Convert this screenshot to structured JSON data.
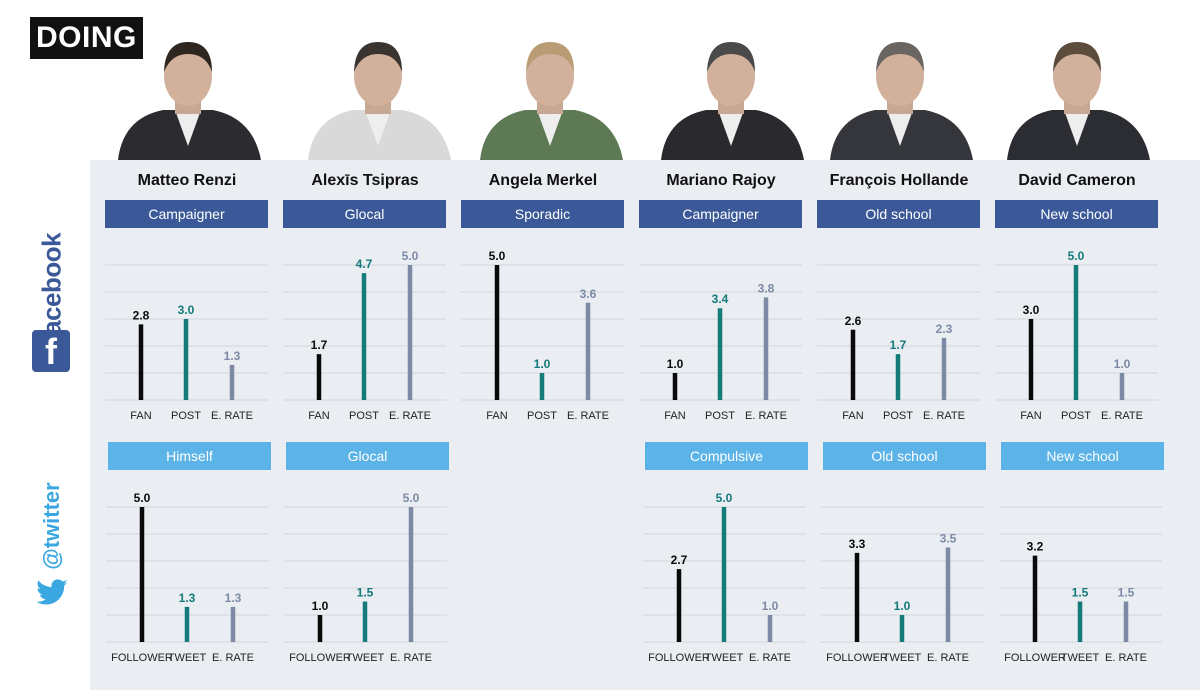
{
  "brand": "DOING",
  "logos": {
    "facebook": "facebook",
    "twitter": "@twitter"
  },
  "colors": {
    "fan": "#0a0a0a",
    "post": "#147a7a",
    "rate": "#7d8aa6",
    "facebook_style_bg": "#3b5998",
    "twitter_style_bg": "#5bb3e8",
    "post_label": "#137a7a",
    "rate_label": "#7d8aa6"
  },
  "leaders": [
    {
      "name": "Matteo Renzi",
      "photo_icon": "portrait-matteo-renzi",
      "facebook": {
        "style": "Campaigner",
        "categories": [
          "FAN",
          "POST",
          "E. RATE"
        ],
        "values": [
          2.8,
          3.0,
          1.3
        ]
      },
      "twitter": {
        "style": "Himself",
        "categories": [
          "FOLLOWER",
          "TWEET",
          "E. RATE"
        ],
        "values": [
          5.0,
          1.3,
          1.3
        ]
      }
    },
    {
      "name": "Alexīs Tsipras",
      "photo_icon": "portrait-alexis-tsipras",
      "facebook": {
        "style": "Glocal",
        "categories": [
          "FAN",
          "POST",
          "E. RATE"
        ],
        "values": [
          1.7,
          4.7,
          5.0
        ]
      },
      "twitter": {
        "style": "Glocal",
        "categories": [
          "FOLLOWER",
          "TWEET",
          "E. RATE"
        ],
        "values": [
          1.0,
          1.5,
          5.0
        ]
      }
    },
    {
      "name": "Angela Merkel",
      "photo_icon": "portrait-angela-merkel",
      "facebook": {
        "style": "Sporadic",
        "categories": [
          "FAN",
          "POST",
          "E. RATE"
        ],
        "values": [
          5.0,
          1.0,
          3.6
        ]
      },
      "twitter": null
    },
    {
      "name": "Mariano Rajoy",
      "photo_icon": "portrait-mariano-rajoy",
      "facebook": {
        "style": "Campaigner",
        "categories": [
          "FAN",
          "POST",
          "E. RATE"
        ],
        "values": [
          1.0,
          3.4,
          3.8
        ]
      },
      "twitter": {
        "style": "Compulsive",
        "categories": [
          "FOLLOWER",
          "TWEET",
          "E. RATE"
        ],
        "values": [
          2.7,
          5.0,
          1.0
        ]
      }
    },
    {
      "name": "François Hollande",
      "photo_icon": "portrait-francois-hollande",
      "facebook": {
        "style": "Old school",
        "categories": [
          "FAN",
          "POST",
          "E. RATE"
        ],
        "values": [
          2.6,
          1.7,
          2.3
        ]
      },
      "twitter": {
        "style": "Old school",
        "categories": [
          "FOLLOWER",
          "TWEET",
          "E. RATE"
        ],
        "values": [
          3.3,
          1.0,
          3.5
        ]
      }
    },
    {
      "name": "David Cameron",
      "photo_icon": "portrait-david-cameron",
      "facebook": {
        "style": "New school",
        "categories": [
          "FAN",
          "POST",
          "E. RATE"
        ],
        "values": [
          3.0,
          5.0,
          1.0
        ]
      },
      "twitter": {
        "style": "New school",
        "categories": [
          "FOLLOWER",
          "TWEET",
          "E. RATE"
        ],
        "values": [
          3.2,
          1.5,
          1.5
        ]
      }
    }
  ],
  "chart_data": [
    {
      "type": "bar",
      "platform": "facebook",
      "leader": "Matteo Renzi",
      "style": "Campaigner",
      "categories": [
        "FAN",
        "POST",
        "E. RATE"
      ],
      "values": [
        2.8,
        3.0,
        1.3
      ],
      "ylim": [
        0,
        5
      ]
    },
    {
      "type": "bar",
      "platform": "facebook",
      "leader": "Alexīs Tsipras",
      "style": "Glocal",
      "categories": [
        "FAN",
        "POST",
        "E. RATE"
      ],
      "values": [
        1.7,
        4.7,
        5.0
      ],
      "ylim": [
        0,
        5
      ]
    },
    {
      "type": "bar",
      "platform": "facebook",
      "leader": "Angela Merkel",
      "style": "Sporadic",
      "categories": [
        "FAN",
        "POST",
        "E. RATE"
      ],
      "values": [
        5.0,
        1.0,
        3.6
      ],
      "ylim": [
        0,
        5
      ]
    },
    {
      "type": "bar",
      "platform": "facebook",
      "leader": "Mariano Rajoy",
      "style": "Campaigner",
      "categories": [
        "FAN",
        "POST",
        "E. RATE"
      ],
      "values": [
        1.0,
        3.4,
        3.8
      ],
      "ylim": [
        0,
        5
      ]
    },
    {
      "type": "bar",
      "platform": "facebook",
      "leader": "François Hollande",
      "style": "Old school",
      "categories": [
        "FAN",
        "POST",
        "E. RATE"
      ],
      "values": [
        2.6,
        1.7,
        2.3
      ],
      "ylim": [
        0,
        5
      ]
    },
    {
      "type": "bar",
      "platform": "facebook",
      "leader": "David Cameron",
      "style": "New school",
      "categories": [
        "FAN",
        "POST",
        "E. RATE"
      ],
      "values": [
        3.0,
        5.0,
        1.0
      ],
      "ylim": [
        0,
        5
      ]
    },
    {
      "type": "bar",
      "platform": "twitter",
      "leader": "Matteo Renzi",
      "style": "Himself",
      "categories": [
        "FOLLOWER",
        "TWEET",
        "E. RATE"
      ],
      "values": [
        5.0,
        1.3,
        1.3
      ],
      "ylim": [
        0,
        5
      ]
    },
    {
      "type": "bar",
      "platform": "twitter",
      "leader": "Alexīs Tsipras",
      "style": "Glocal",
      "categories": [
        "FOLLOWER",
        "TWEET",
        "E. RATE"
      ],
      "values": [
        1.0,
        1.5,
        5.0
      ],
      "ylim": [
        0,
        5
      ]
    },
    {
      "type": "bar",
      "platform": "twitter",
      "leader": "Mariano Rajoy",
      "style": "Compulsive",
      "categories": [
        "FOLLOWER",
        "TWEET",
        "E. RATE"
      ],
      "values": [
        2.7,
        5.0,
        1.0
      ],
      "ylim": [
        0,
        5
      ]
    },
    {
      "type": "bar",
      "platform": "twitter",
      "leader": "François Hollande",
      "style": "Old school",
      "categories": [
        "FOLLOWER",
        "TWEET",
        "E. RATE"
      ],
      "values": [
        3.3,
        1.0,
        3.5
      ],
      "ylim": [
        0,
        5
      ]
    },
    {
      "type": "bar",
      "platform": "twitter",
      "leader": "David Cameron",
      "style": "New school",
      "categories": [
        "FOLLOWER",
        "TWEET",
        "E. RATE"
      ],
      "values": [
        3.2,
        1.5,
        1.5
      ],
      "ylim": [
        0,
        5
      ]
    }
  ]
}
